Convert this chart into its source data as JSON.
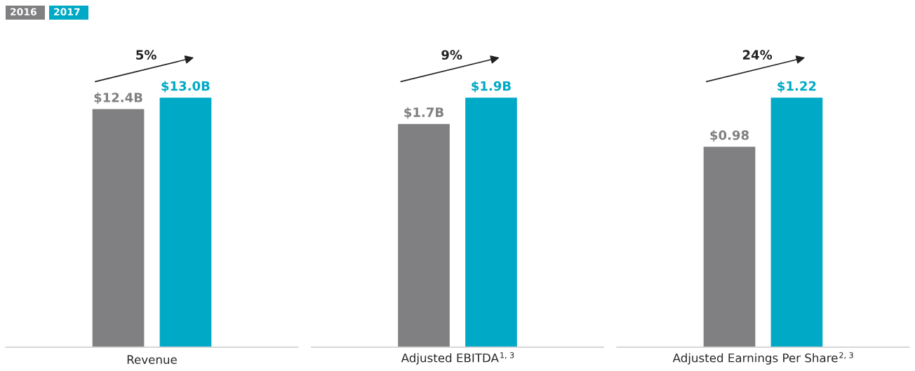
{
  "chart_data": [
    {
      "type": "bar",
      "categories": [
        null
      ],
      "xlabel": "Revenue",
      "legend": "top left",
      "series": [
        {
          "name": "2016",
          "color": "#808083",
          "values": [
            12.4
          ],
          "value_labels": [
            "$12.4B"
          ]
        },
        {
          "name": "2017",
          "color": "#00a9c5",
          "values": [
            13.0
          ],
          "value_labels": [
            "$13.0B"
          ]
        }
      ],
      "annotations": [
        "5%"
      ]
    },
    {
      "type": "bar",
      "categories": [
        null
      ],
      "xlabel": "Adjusted EBITDA$^{1, 3}$",
      "series": [
        {
          "color": "#808083",
          "values": [
            1.7
          ],
          "value_labels": [
            "$1.7B"
          ]
        },
        {
          "color": "#00a9c5",
          "values": [
            1.9
          ],
          "value_labels": [
            "$1.9B"
          ]
        }
      ],
      "annotations": [
        "9%"
      ]
    },
    {
      "type": "bar",
      "categories": [
        null
      ],
      "xlabel": "Adjusted Earnings Per Share$^{2, 3}$",
      "series": [
        {
          "color": "#808083",
          "values": [
            0.98
          ],
          "value_labels": [
            "$0.98"
          ]
        },
        {
          "color": "#00a9c5",
          "values": [
            1.22
          ],
          "value_labels": [
            "$1.22"
          ]
        }
      ],
      "annotations": [
        "24%"
      ]
    }
  ]
}
